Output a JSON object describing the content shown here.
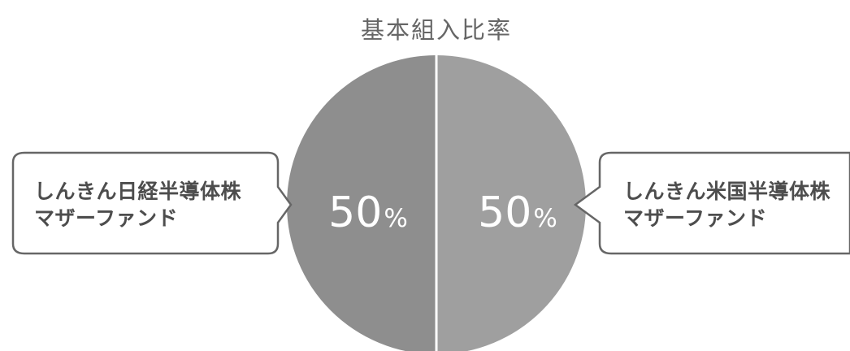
{
  "chart_data": {
    "type": "pie",
    "title": "基本組入比率",
    "slices": [
      {
        "label_line1": "しんきん日経半導体株",
        "label_line2": "マザーファンド",
        "value": 50,
        "display": "50",
        "unit": "%",
        "color": "#8e8e8e"
      },
      {
        "label_line1": "しんきん米国半導体株",
        "label_line2": "マザーファンド",
        "value": 50,
        "display": "50",
        "unit": "%",
        "color": "#9f9f9f"
      }
    ]
  }
}
